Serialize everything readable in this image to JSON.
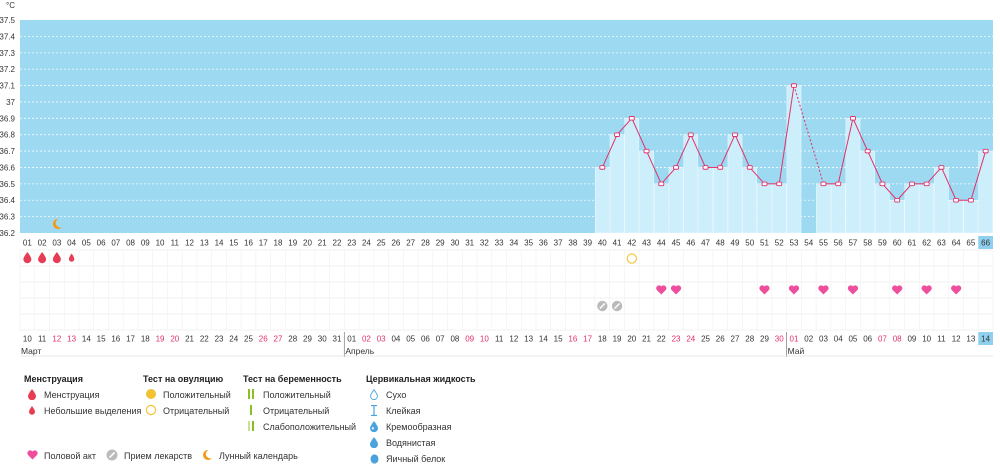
{
  "chart_data": {
    "type": "line",
    "ylabel": "°C",
    "ylim": [
      36.2,
      37.5
    ],
    "yticks": [
      "36.2",
      "36.3",
      "36.4",
      "36.5",
      "36.6",
      "36.7",
      "36.8",
      "36.9",
      "37",
      "37.1",
      "37.2",
      "37.3",
      "37.4",
      "37.5"
    ],
    "cycle_days": [
      "01",
      "02",
      "03",
      "04",
      "05",
      "06",
      "07",
      "08",
      "09",
      "10",
      "11",
      "12",
      "13",
      "14",
      "15",
      "16",
      "17",
      "18",
      "19",
      "20",
      "21",
      "22",
      "23",
      "24",
      "25",
      "26",
      "27",
      "28",
      "29",
      "30",
      "31",
      "32",
      "33",
      "34",
      "35",
      "36",
      "37",
      "38",
      "39",
      "40",
      "41",
      "42",
      "43",
      "44",
      "45",
      "46",
      "47",
      "48",
      "49",
      "50",
      "51",
      "52",
      "53",
      "54",
      "55",
      "56",
      "57",
      "58",
      "59",
      "60",
      "61",
      "62",
      "63",
      "64",
      "65",
      "66"
    ],
    "current_day_index": 65,
    "dates": [
      "10",
      "11",
      "12",
      "13",
      "14",
      "15",
      "16",
      "17",
      "18",
      "19",
      "20",
      "21",
      "22",
      "23",
      "24",
      "25",
      "26",
      "27",
      "28",
      "29",
      "30",
      "31",
      "01",
      "02",
      "03",
      "04",
      "05",
      "06",
      "07",
      "08",
      "09",
      "10",
      "11",
      "12",
      "13",
      "14",
      "15",
      "16",
      "17",
      "18",
      "19",
      "20",
      "21",
      "22",
      "23",
      "24",
      "25",
      "26",
      "27",
      "28",
      "29",
      "30",
      "01",
      "02",
      "03",
      "04",
      "05",
      "06",
      "07",
      "08",
      "09",
      "10",
      "11",
      "12",
      "13",
      "14"
    ],
    "weekend_indices": [
      2,
      3,
      9,
      10,
      16,
      17,
      23,
      24,
      30,
      31,
      37,
      38,
      44,
      45,
      51,
      52,
      58,
      59
    ],
    "months": [
      {
        "label": "Март",
        "start_index": 0
      },
      {
        "label": "Апрель",
        "start_index": 22
      },
      {
        "label": "Май",
        "start_index": 52
      }
    ],
    "temperatures": [
      {
        "day": 40,
        "value": 36.6
      },
      {
        "day": 41,
        "value": 36.8
      },
      {
        "day": 42,
        "value": 36.9
      },
      {
        "day": 43,
        "value": 36.7
      },
      {
        "day": 44,
        "value": 36.5
      },
      {
        "day": 45,
        "value": 36.6
      },
      {
        "day": 46,
        "value": 36.8
      },
      {
        "day": 47,
        "value": 36.6
      },
      {
        "day": 48,
        "value": 36.6
      },
      {
        "day": 49,
        "value": 36.8
      },
      {
        "day": 50,
        "value": 36.6
      },
      {
        "day": 51,
        "value": 36.5
      },
      {
        "day": 52,
        "value": 36.5
      },
      {
        "day": 53,
        "value": 37.1
      },
      {
        "day": 55,
        "value": 36.5
      },
      {
        "day": 56,
        "value": 36.5
      },
      {
        "day": 57,
        "value": 36.9
      },
      {
        "day": 58,
        "value": 36.7
      },
      {
        "day": 59,
        "value": 36.5
      },
      {
        "day": 60,
        "value": 36.4
      },
      {
        "day": 61,
        "value": 36.5
      },
      {
        "day": 62,
        "value": 36.5
      },
      {
        "day": 63,
        "value": 36.6
      },
      {
        "day": 64,
        "value": 36.4
      },
      {
        "day": 65,
        "value": 36.4
      },
      {
        "day": 66,
        "value": 36.7
      }
    ],
    "menstruation_days": [
      1,
      2,
      3
    ],
    "spotting_days": [
      4
    ],
    "ovulation_negative_days": [
      42
    ],
    "intercourse_days": [
      44,
      45,
      51,
      53,
      55,
      57,
      60,
      62,
      64
    ],
    "medication_days": [
      40,
      41
    ],
    "lunar_days": [
      3
    ]
  },
  "legend": {
    "menstruation": {
      "title": "Менструация",
      "items": [
        "Менструация",
        "Небольшие выделения"
      ]
    },
    "ovulation_test": {
      "title": "Тест на овуляцию",
      "items": [
        "Положительный",
        "Отрицательный"
      ]
    },
    "pregnancy_test": {
      "title": "Тест на беременность",
      "items": [
        "Положительный",
        "Отрицательный",
        "Слабоположительный"
      ]
    },
    "cervical_fluid": {
      "title": "Цервикальная жидкость",
      "items": [
        "Сухо",
        "Клейкая",
        "Кремообразная",
        "Водянистая",
        "Яичный белок"
      ]
    },
    "other": [
      "Половой акт",
      "Прием лекарств",
      "Лунный календарь"
    ]
  },
  "colors": {
    "sky": "#9ed9f2",
    "bar": "#cdeefb",
    "line": "#e0306a",
    "heart": "#ee4e9c",
    "drop": "#e63d55",
    "weekend": "#e0306a",
    "highlight": "#8fd0ef",
    "ovulation": "#f2c230",
    "pregnancy": "#8bbf28",
    "moon": "#f29a1a"
  }
}
